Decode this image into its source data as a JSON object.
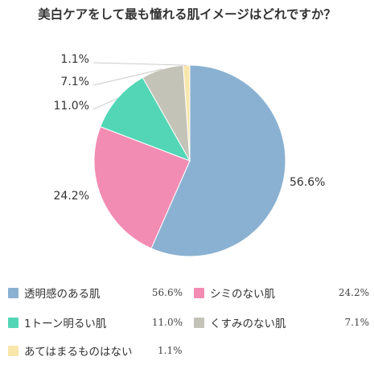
{
  "chart_data": {
    "type": "pie",
    "title": "美白ケアをして最も憧れる肌イメージはどれですか？",
    "categories": [
      "透明感のある肌",
      "シミのない肌",
      "1トーン明るい肌",
      "くすみのない肌",
      "あてはまるものはない"
    ],
    "values": [
      56.6,
      24.2,
      11.0,
      7.1,
      1.1
    ],
    "value_labels": [
      "56.6%",
      "24.2%",
      "11.0%",
      "7.1%",
      "1.1%"
    ],
    "colors": [
      "#8ab1d1",
      "#f28cb3",
      "#52d6b6",
      "#c4c3b8",
      "#f8e6ab"
    ],
    "start_angle": "12 o'clock",
    "direction": "clockwise",
    "legend_position": "bottom"
  }
}
